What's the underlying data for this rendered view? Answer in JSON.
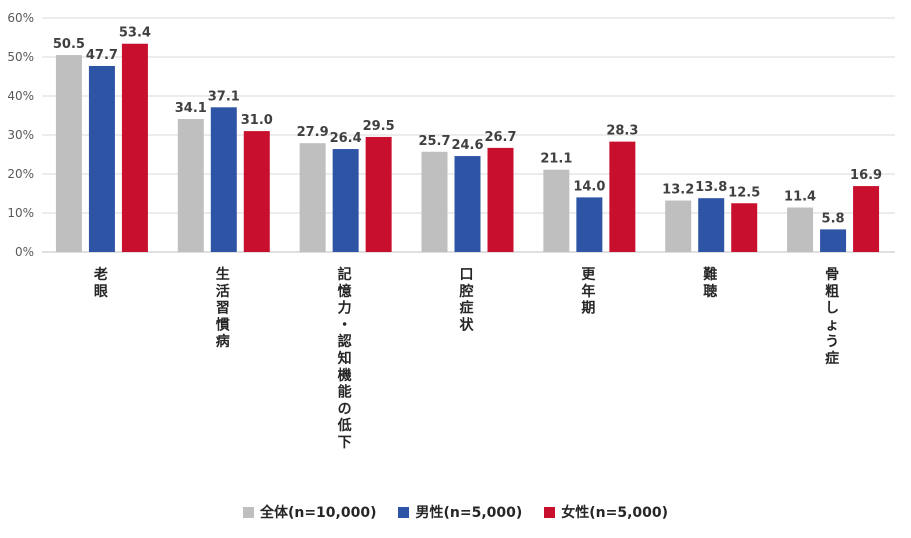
{
  "chart_data": {
    "type": "bar",
    "title": "",
    "xlabel": "",
    "ylabel": "",
    "ylim": [
      0,
      60
    ],
    "yticks": [
      "0%",
      "10%",
      "20%",
      "30%",
      "40%",
      "50%",
      "60%"
    ],
    "categories": [
      "老眼",
      "生活習慣病",
      "記憶力・認知機能の低下",
      "口腔症状",
      "更年期",
      "難聴",
      "骨粗しょう症"
    ],
    "series": [
      {
        "name": "全体(n=10,000)",
        "color": "#bfbfbf",
        "values": [
          50.5,
          34.1,
          27.9,
          25.7,
          21.1,
          13.2,
          11.4
        ]
      },
      {
        "name": "男性(n=5,000)",
        "color": "#2e54a6",
        "values": [
          47.7,
          37.1,
          26.4,
          24.6,
          14.0,
          13.8,
          5.8
        ]
      },
      {
        "name": "女性(n=5,000)",
        "color": "#c8102e",
        "values": [
          53.4,
          31.0,
          29.5,
          26.7,
          28.3,
          12.5,
          16.9
        ]
      }
    ],
    "legend_position": "bottom"
  }
}
